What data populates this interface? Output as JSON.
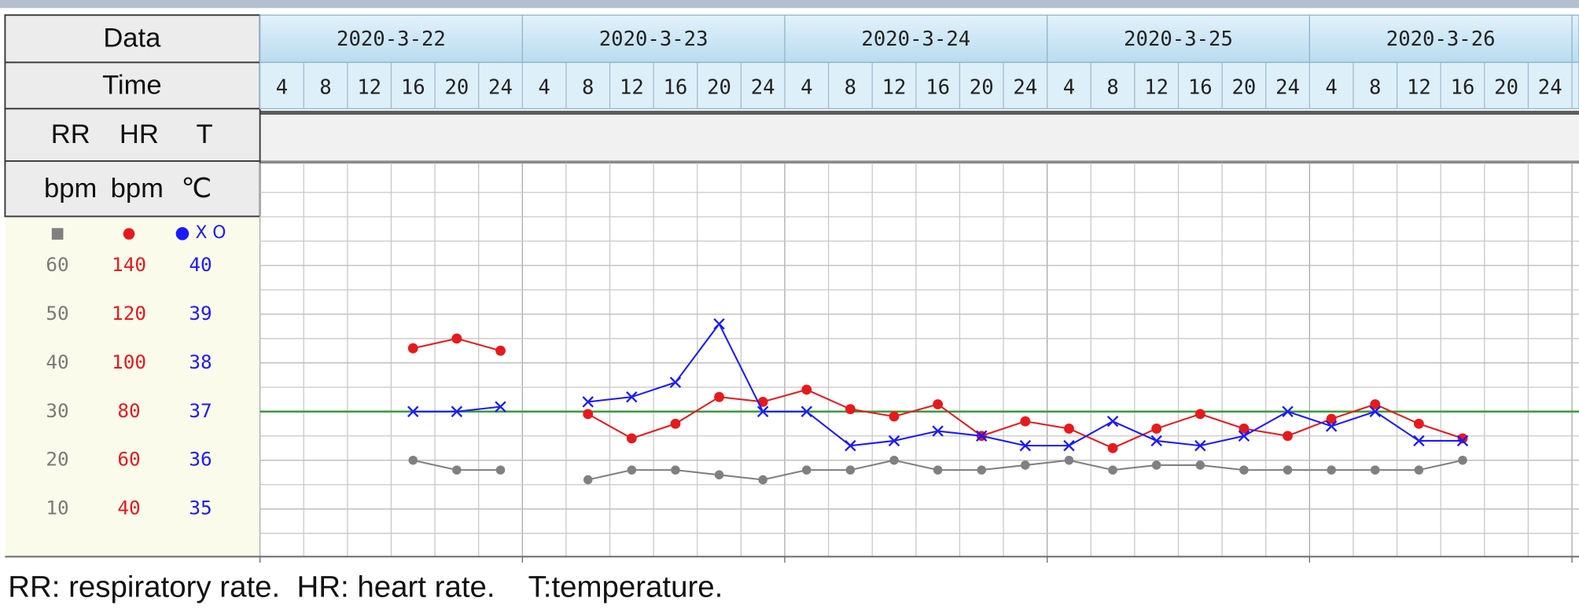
{
  "chart_data": {
    "type": "line",
    "row_labels": [
      "Data",
      "Time"
    ],
    "dates": [
      "2020-3-22",
      "2020-3-23",
      "2020-3-24",
      "2020-3-25",
      "2020-3-26"
    ],
    "categories": [
      "4",
      "8",
      "12",
      "16",
      "20",
      "24",
      "4",
      "8",
      "12",
      "16",
      "20",
      "24",
      "4",
      "8",
      "12",
      "16",
      "20",
      "24",
      "4",
      "8",
      "12",
      "16",
      "20",
      "24",
      "4",
      "8",
      "12",
      "16",
      "20",
      "24"
    ],
    "series": [
      {
        "name": "RR",
        "unit": "bpm",
        "marker_label": "■",
        "color": "#808080",
        "marker": "dot",
        "ylim": [
          0,
          80
        ],
        "yticks": [
          10,
          20,
          30,
          40,
          50,
          60
        ],
        "values": [
          null,
          null,
          null,
          20,
          18,
          18,
          null,
          16,
          18,
          18,
          17,
          16,
          18,
          18,
          20,
          18,
          18,
          19,
          20,
          18,
          19,
          19,
          18,
          18,
          18,
          18,
          18,
          20,
          null,
          null
        ]
      },
      {
        "name": "HR",
        "unit": "bpm",
        "marker_label": "●",
        "color": "#e8191c",
        "marker": "dot",
        "ylim": [
          20,
          180
        ],
        "yticks": [
          40,
          60,
          80,
          100,
          120,
          140
        ],
        "values": [
          null,
          null,
          null,
          106,
          110,
          105,
          null,
          79,
          69,
          75,
          86,
          84,
          89,
          81,
          78,
          83,
          70,
          76,
          73,
          65,
          73,
          79,
          73,
          70,
          77,
          83,
          75,
          69,
          null,
          null
        ]
      },
      {
        "name": "T",
        "unit": "℃",
        "marker_label": "● X O",
        "color": "#1a1aff",
        "marker": "x",
        "ylim": [
          34,
          42
        ],
        "yticks": [
          35,
          36,
          37,
          38,
          39,
          40
        ],
        "reference": 37,
        "reference_color": "#3c9a3c",
        "values": [
          null,
          null,
          null,
          37.0,
          37.0,
          37.1,
          null,
          37.2,
          37.3,
          37.6,
          38.8,
          37.0,
          37.0,
          36.3,
          36.4,
          36.6,
          36.5,
          36.3,
          36.3,
          36.8,
          36.4,
          36.3,
          36.5,
          37.0,
          36.7,
          37.0,
          36.4,
          36.4,
          null,
          null
        ]
      }
    ],
    "note": "RR: respiratory rate.  HR: heart rate.    T:temperature."
  }
}
